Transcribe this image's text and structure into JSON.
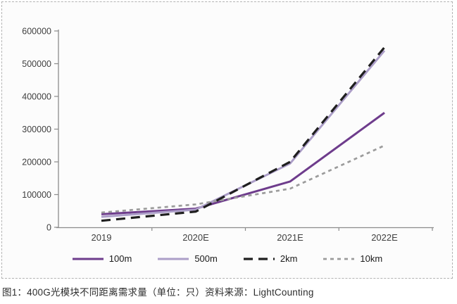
{
  "caption": "图1：400G光模块不同距离需求量（单位：只）资料来源：LightCounting",
  "chart_data": {
    "type": "line",
    "categories": [
      "2019",
      "2020E",
      "2021E",
      "2022E"
    ],
    "series": [
      {
        "name": "100m",
        "values": [
          40000,
          57000,
          140000,
          350000
        ],
        "color": "#6E3C8C",
        "dash": "solid"
      },
      {
        "name": "500m",
        "values": [
          32000,
          54000,
          195000,
          540000
        ],
        "color": "#AC9EC8",
        "dash": "solid"
      },
      {
        "name": "2km",
        "values": [
          20000,
          48000,
          200000,
          550000
        ],
        "color": "#1F1F1F",
        "dash": "long-dash"
      },
      {
        "name": "10km",
        "values": [
          45000,
          70000,
          118000,
          250000
        ],
        "color": "#9B9B9B",
        "dash": "short-dash"
      }
    ],
    "ylim": [
      0,
      600000
    ],
    "ytick_step": 100000,
    "ytick_labels": [
      "0",
      "100000",
      "200000",
      "300000",
      "400000",
      "500000",
      "600000"
    ],
    "xlabel": "",
    "ylabel": "",
    "title": "",
    "grid": false,
    "legend_position": "bottom",
    "axis_color": "#8c8c8c"
  }
}
